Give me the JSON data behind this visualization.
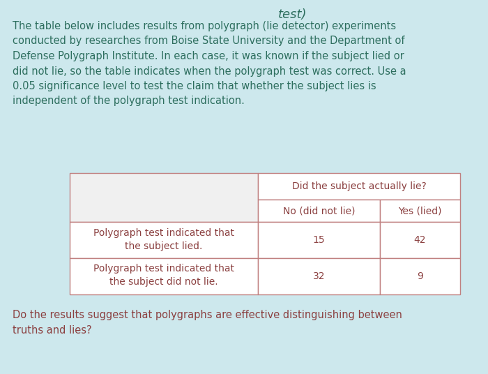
{
  "bg_color": "#cde8ed",
  "table_bg": "#f0f0f0",
  "title_text": "test)",
  "paragraph_lines": [
    "The table below includes results from polygraph (lie detector) experiments",
    "conducted by researches from Boise State University and the Department of",
    "Defense Polygraph Institute. In each case, it was known if the subject lied or",
    "did not lie, so the table indicates when the polygraph test was correct. Use a",
    "0.05 significance level to test the claim that whether the subject lies is",
    "independent of the polygraph test indication."
  ],
  "footer_lines": [
    "Do the results suggest that polygraphs are effective distinguishing between",
    "truths and lies?"
  ],
  "col_header_top": "Did the subject actually lie?",
  "col_header_left": "No (did not lie)",
  "col_header_right": "Yes (lied)",
  "row1_label_line1": "Polygraph test indicated that",
  "row1_label_line2": "the subject lied.",
  "row1_val1": "15",
  "row1_val2": "42",
  "row2_label_line1": "Polygraph test indicated that",
  "row2_label_line2": "the subject did not lie.",
  "row2_val1": "32",
  "row2_val2": "9",
  "para_text_color": "#2d6e5e",
  "table_text_color": "#8b4040",
  "footer_text_color": "#8b4040",
  "table_border_color": "#c08080",
  "title_color": "#2d6e5e",
  "font_size_para": 10.5,
  "font_size_table": 10.0,
  "font_size_footer": 10.5,
  "font_size_title": 13
}
